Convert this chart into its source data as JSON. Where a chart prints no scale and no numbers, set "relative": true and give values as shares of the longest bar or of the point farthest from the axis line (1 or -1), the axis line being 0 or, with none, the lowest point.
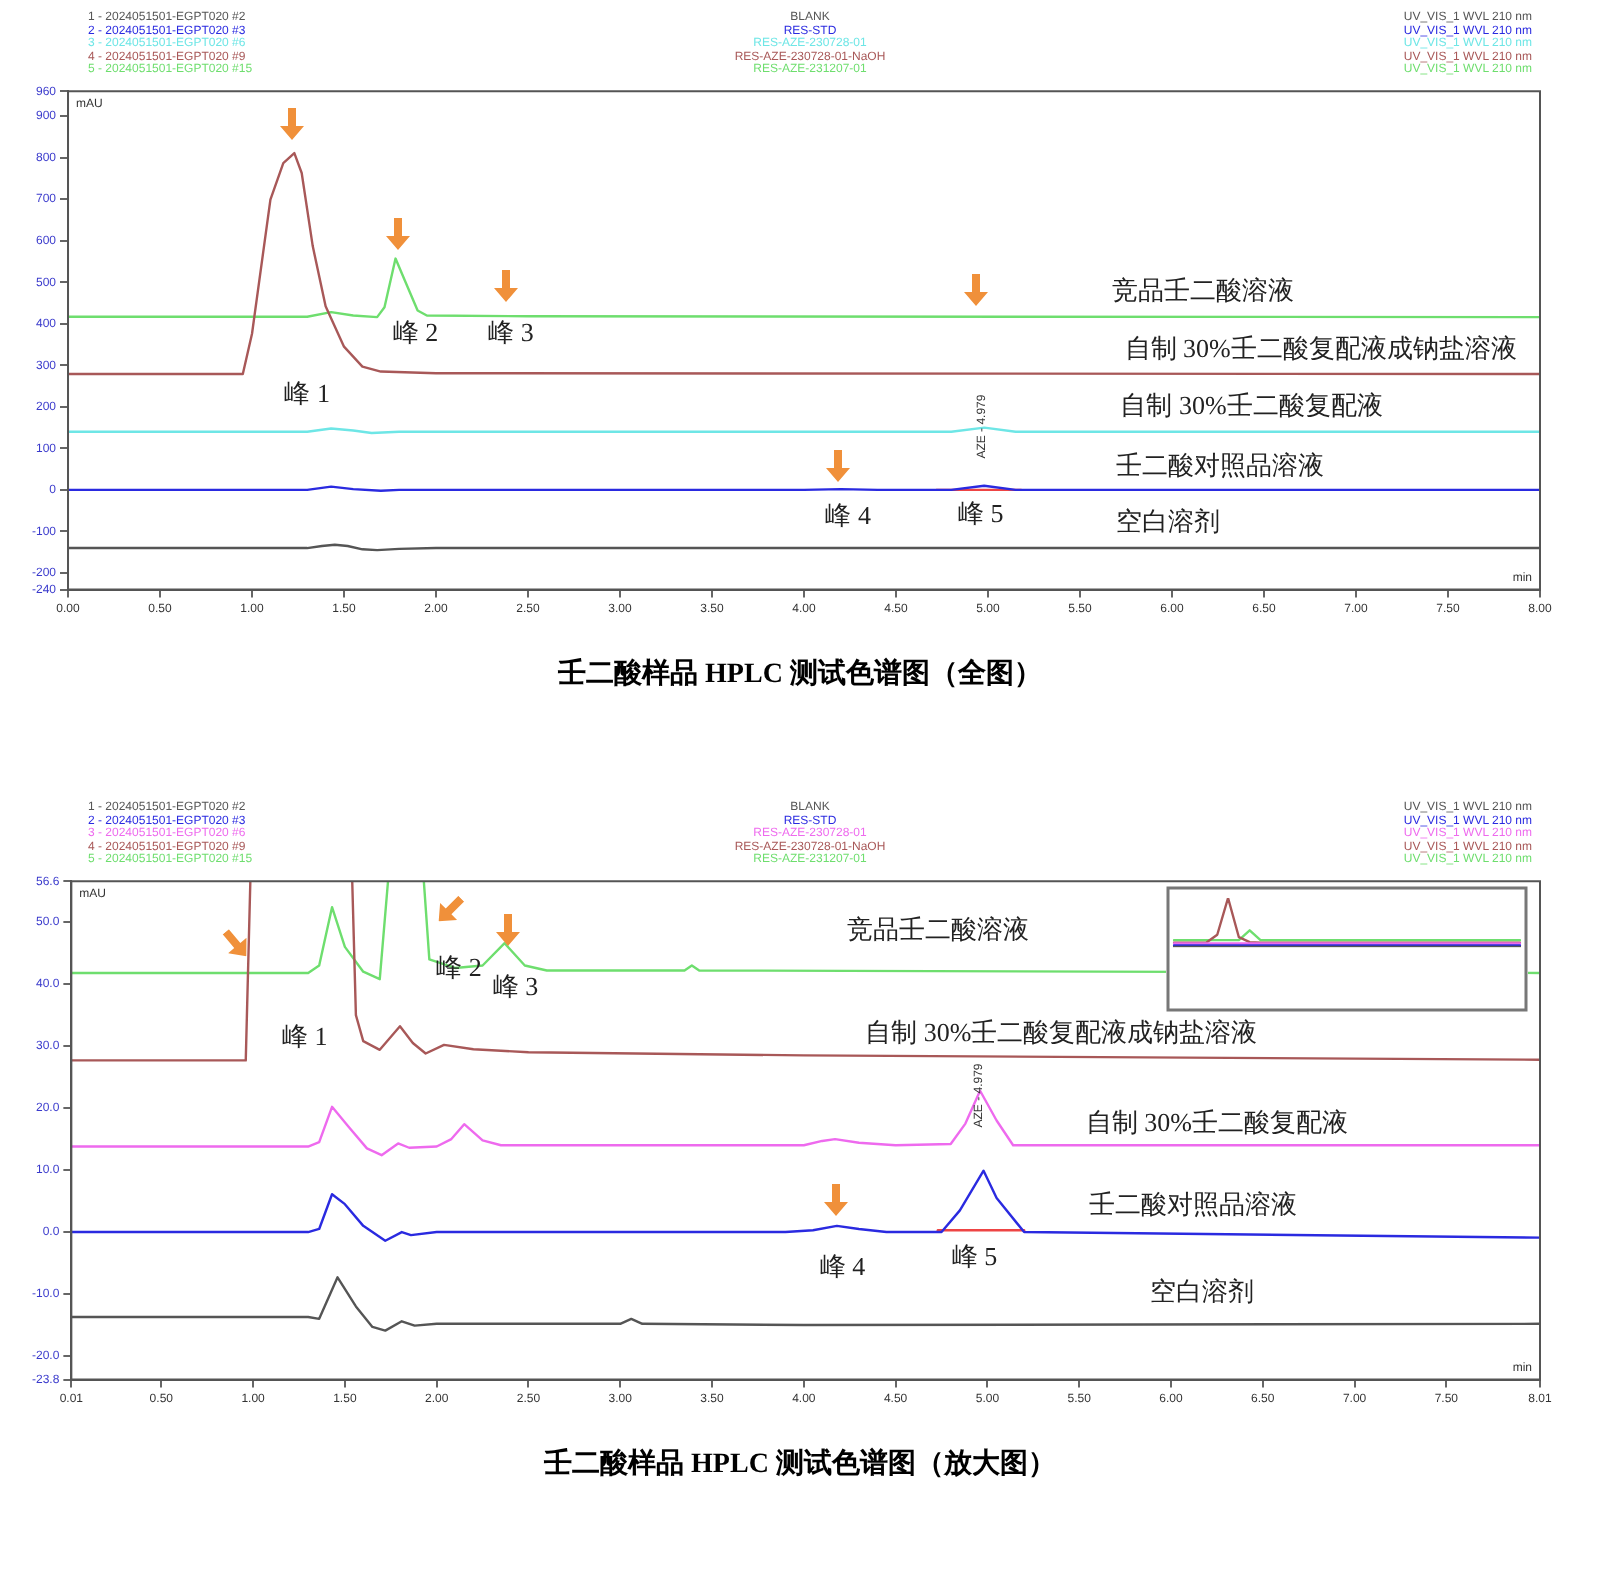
{
  "chart_data": [
    {
      "type": "line",
      "title": "壬二酸样品 HPLC 测试色谱图（全图）",
      "xlabel": "min",
      "ylabel": "mAU",
      "xlim": [
        0,
        8
      ],
      "ylim": [
        -240,
        960
      ],
      "xticks": [
        {
          "value": 0,
          "label": "0.00"
        },
        {
          "value": 0.5,
          "label": "0.50"
        },
        {
          "value": 1,
          "label": "1.00"
        },
        {
          "value": 1.5,
          "label": "1.50"
        },
        {
          "value": 2,
          "label": "2.00"
        },
        {
          "value": 2.5,
          "label": "2.50"
        },
        {
          "value": 3,
          "label": "3.00"
        },
        {
          "value": 3.5,
          "label": "3.50"
        },
        {
          "value": 4,
          "label": "4.00"
        },
        {
          "value": 4.5,
          "label": "4.50"
        },
        {
          "value": 5,
          "label": "5.00"
        },
        {
          "value": 5.5,
          "label": "5.50"
        },
        {
          "value": 6,
          "label": "6.00"
        },
        {
          "value": 6.5,
          "label": "6.50"
        },
        {
          "value": 7,
          "label": "7.00"
        },
        {
          "value": 7.5,
          "label": "7.50"
        },
        {
          "value": 8,
          "label": "8.00"
        }
      ],
      "yticks": [
        960,
        900,
        800,
        700,
        600,
        500,
        400,
        300,
        200,
        100,
        0,
        -100,
        -200,
        -240
      ],
      "grid": false,
      "legend": false,
      "marker": "none",
      "line_style": "solid",
      "series": [
        {
          "color": "#555555",
          "x": [
            0,
            1.3,
            1.38,
            1.45,
            1.52,
            1.6,
            1.68,
            1.8,
            2.0,
            8.0
          ],
          "values": [
            -140,
            -140,
            -135,
            -132,
            -135,
            -143,
            -145,
            -142,
            -140,
            -140
          ]
        },
        {
          "color": "#2a2ae0",
          "x": [
            0,
            1.3,
            1.43,
            1.55,
            1.7,
            1.8,
            4.0,
            4.2,
            4.4,
            4.8,
            4.979,
            5.15,
            8.0
          ],
          "values": [
            0,
            0,
            8,
            2,
            -2,
            0,
            0,
            2,
            0,
            0,
            10,
            0,
            0
          ]
        },
        {
          "color": "#6ee6e6",
          "x": [
            0,
            1.3,
            1.43,
            1.55,
            1.65,
            1.8,
            4.8,
            4.98,
            5.15,
            8.0
          ],
          "values": [
            140,
            140,
            148,
            143,
            137,
            140,
            140,
            150,
            140,
            140
          ]
        },
        {
          "color": "#a85858",
          "x": [
            0,
            0.95,
            1.0,
            1.1,
            1.17,
            1.2,
            1.23,
            1.27,
            1.33,
            1.4,
            1.5,
            1.6,
            1.7,
            2.0,
            8.0
          ],
          "values": [
            279,
            279,
            376,
            699,
            787,
            799,
            811,
            763,
            587,
            442,
            345,
            297,
            285,
            281,
            279
          ]
        },
        {
          "color": "#6ede6e",
          "x": [
            0,
            1.3,
            1.43,
            1.55,
            1.68,
            1.72,
            1.78,
            1.83,
            1.9,
            1.95,
            2.5,
            8.0
          ],
          "values": [
            417,
            417,
            428,
            420,
            416,
            440,
            557,
            505,
            432,
            420,
            418,
            416
          ]
        },
        {
          "color": "#ee4444",
          "x": [
            4.72,
            5.18
          ],
          "values": [
            0,
            0
          ]
        }
      ],
      "annotations": [
        "1 - 2024051501-EGPT020 #2",
        "BLANK",
        "UV_VIS_1 WVL 210 nm",
        "2 - 2024051501-EGPT020 #3",
        "RES-STD",
        "UV_VIS_1 WVL 210 nm",
        "3 - 2024051501-EGPT020 #6",
        "RES-AZE-230728-01",
        "UV_VIS_1 WVL 210 nm",
        "4 - 2024051501-EGPT020 #9",
        "RES-AZE-230728-01-NaOH",
        "UV_VIS_1 WVL 210 nm",
        "5 - 2024051501-EGPT020 #15",
        "RES-AZE-231207-01",
        "UV_VIS_1 WVL 210 nm",
        "峰 1",
        "峰 2",
        "峰 3",
        "峰 4",
        "峰 5",
        "竞品壬二酸溶液",
        "自制 30%壬二酸复配液成钠盐溶液",
        "自制 30%壬二酸复配液",
        "壬二酸对照品溶液",
        "空白溶剂",
        "AZE - 4.979"
      ]
    },
    {
      "type": "line",
      "title": "壬二酸样品 HPLC 测试色谱图（放大图）",
      "xlabel": "min",
      "ylabel": "mAU",
      "xlim": [
        0.01,
        8.01
      ],
      "ylim": [
        -23.8,
        56.6
      ],
      "xticks": [
        {
          "value": 0.01,
          "label": "0.01"
        },
        {
          "value": 0.5,
          "label": "0.50"
        },
        {
          "value": 1,
          "label": "1.00"
        },
        {
          "value": 1.5,
          "label": "1.50"
        },
        {
          "value": 2,
          "label": "2.00"
        },
        {
          "value": 2.5,
          "label": "2.50"
        },
        {
          "value": 3,
          "label": "3.00"
        },
        {
          "value": 3.5,
          "label": "3.50"
        },
        {
          "value": 4,
          "label": "4.00"
        },
        {
          "value": 4.5,
          "label": "4.50"
        },
        {
          "value": 5,
          "label": "5.00"
        },
        {
          "value": 5.5,
          "label": "5.50"
        },
        {
          "value": 6,
          "label": "6.00"
        },
        {
          "value": 6.5,
          "label": "6.50"
        },
        {
          "value": 7,
          "label": "7.00"
        },
        {
          "value": 7.5,
          "label": "7.50"
        },
        {
          "value": 8.01,
          "label": "8.01"
        }
      ],
      "yticks": [
        56.6,
        {
          "value": 50,
          "label": "50.0"
        },
        {
          "value": 40,
          "label": "40.0"
        },
        {
          "value": 30,
          "label": "30.0"
        },
        {
          "value": 20,
          "label": "20.0"
        },
        {
          "value": 10,
          "label": "10.0"
        },
        {
          "value": 0,
          "label": "0.0"
        },
        {
          "value": -10,
          "label": "-10.0"
        },
        {
          "value": -20,
          "label": "-20.0"
        },
        -23.8
      ],
      "grid": false,
      "legend": false,
      "marker": "none",
      "line_style": "solid",
      "series": [
        {
          "color": "#555555",
          "x": [
            0.01,
            1.3,
            1.36,
            1.46,
            1.56,
            1.65,
            1.72,
            1.81,
            1.88,
            2.0,
            3.0,
            3.06,
            3.12,
            4.0,
            8.01
          ],
          "values": [
            -13.7,
            -13.7,
            -14.0,
            -7.3,
            -12.0,
            -15.3,
            -15.9,
            -14.4,
            -15.1,
            -14.8,
            -14.8,
            -14.0,
            -14.8,
            -15.0,
            -14.8
          ]
        },
        {
          "color": "#2a2ae0",
          "x": [
            0.01,
            1.3,
            1.36,
            1.43,
            1.5,
            1.6,
            1.72,
            1.81,
            1.86,
            2.0,
            3.9,
            4.05,
            4.18,
            4.3,
            4.45,
            4.75,
            4.85,
            4.979,
            5.05,
            5.2,
            8.01
          ],
          "values": [
            0,
            0,
            0.5,
            6.1,
            4.5,
            1.0,
            -1.4,
            0,
            -0.5,
            0,
            0,
            0.3,
            1.0,
            0.5,
            0,
            0,
            3.5,
            9.9,
            5.5,
            0,
            -0.9
          ]
        },
        {
          "color": "#ee6aee",
          "x": [
            0.01,
            1.3,
            1.36,
            1.43,
            1.52,
            1.62,
            1.7,
            1.79,
            1.85,
            2.0,
            2.08,
            2.15,
            2.25,
            2.35,
            4.0,
            4.1,
            4.17,
            4.3,
            4.5,
            4.8,
            4.88,
            4.96,
            5.05,
            5.14,
            8.01
          ],
          "values": [
            13.8,
            13.8,
            14.5,
            20.2,
            17.0,
            13.5,
            12.4,
            14.3,
            13.6,
            13.8,
            15.0,
            17.4,
            14.8,
            14.0,
            14.0,
            14.7,
            15.0,
            14.4,
            14.0,
            14.2,
            17.5,
            22.8,
            18.0,
            14.0,
            14.0
          ]
        },
        {
          "color": "#a85858",
          "x": [
            0.01,
            0.96,
            0.985,
            1.2,
            1.54,
            1.56,
            1.6,
            1.69,
            1.8,
            1.87,
            1.94,
            2.04,
            2.2,
            2.5,
            4.0,
            8.01
          ],
          "values": [
            27.7,
            27.7,
            56.6,
            null,
            56.6,
            35.0,
            30.8,
            29.4,
            33.2,
            30.5,
            28.8,
            30.2,
            29.5,
            29.0,
            28.5,
            27.8
          ]
        },
        {
          "color": "#6ede6e",
          "x": [
            0.01,
            1.3,
            1.36,
            1.43,
            1.5,
            1.6,
            1.69,
            1.735,
            1.8,
            1.93,
            1.96,
            2.1,
            2.25,
            2.37,
            2.48,
            2.6,
            3.35,
            3.39,
            3.43,
            8.01
          ],
          "values": [
            41.8,
            41.8,
            43.0,
            52.4,
            46.0,
            42.0,
            40.8,
            56.6,
            null,
            56.6,
            44.0,
            42.6,
            43.0,
            46.6,
            43.0,
            42.2,
            42.2,
            43.0,
            42.2,
            41.8
          ]
        },
        {
          "color": "#ee4444",
          "x": [
            4.73,
            5.2
          ],
          "values": [
            0.3,
            0.3
          ]
        }
      ],
      "annotations": [
        "1 - 2024051501-EGPT020 #2",
        "BLANK",
        "UV_VIS_1 WVL 210 nm",
        "2 - 2024051501-EGPT020 #3",
        "RES-STD",
        "UV_VIS_1 WVL 210 nm",
        "3 - 2024051501-EGPT020 #6",
        "RES-AZE-230728-01",
        "UV_VIS_1 WVL 210 nm",
        "4 - 2024051501-EGPT020 #9",
        "RES-AZE-230728-01-NaOH",
        "UV_VIS_1 WVL 210 nm",
        "5 - 2024051501-EGPT020 #15",
        "RES-AZE-231207-01",
        "UV_VIS_1 WVL 210 nm",
        "峰 1",
        "峰 2",
        "峰 3",
        "峰 4",
        "峰 5",
        "竞品壬二酸溶液",
        "自制 30%壬二酸复配液成钠盐溶液",
        "自制 30%壬二酸复配液",
        "壬二酸对照品溶液",
        "空白溶剂",
        "AZE - 4.979"
      ]
    },
    {
      "type": "line",
      "relative": true,
      "legend": false,
      "grid": false,
      "marker": "none",
      "categories": [
        null,
        null,
        null,
        null,
        null,
        null,
        null,
        null,
        null,
        null,
        null,
        null,
        null,
        null,
        null,
        null,
        null,
        null,
        null,
        null,
        null,
        null,
        null,
        null,
        null,
        null,
        null,
        null,
        null,
        null,
        null,
        null,
        null
      ],
      "series": [
        {
          "color": "#555555",
          "values": [
            0,
            0,
            0,
            0,
            0,
            0,
            0,
            0,
            0,
            0,
            0,
            0,
            0,
            0,
            0,
            0,
            0,
            0,
            0,
            0,
            0,
            0,
            0,
            0,
            0,
            0,
            0,
            0,
            0,
            0,
            0,
            0,
            0
          ]
        },
        {
          "color": "#2a2ae0",
          "values": [
            0.03,
            0.03,
            0.03,
            0.03,
            0.03,
            0.03,
            0.03,
            0.03,
            0.03,
            0.03,
            0.03,
            0.03,
            0.03,
            0.03,
            0.03,
            0.03,
            0.03,
            0.03,
            0.03,
            0.03,
            0.03,
            0.03,
            0.03,
            0.03,
            0.03,
            0.03,
            0.03,
            0.03,
            0.03,
            0.03,
            0.03,
            0.03,
            0.03
          ]
        },
        {
          "color": "#ee6aee",
          "values": [
            0.07,
            0.07,
            0.07,
            0.07,
            0.07,
            0.07,
            0.07,
            0.07,
            0.07,
            0.07,
            0.07,
            0.07,
            0.07,
            0.07,
            0.07,
            0.07,
            0.07,
            0.07,
            0.07,
            0.07,
            0.07,
            0.07,
            0.07,
            0.07,
            0.07,
            0.07,
            0.07,
            0.07,
            0.07,
            0.07,
            0.07,
            0.07,
            0.07
          ]
        },
        {
          "color": "#a85858",
          "values": [
            0.09,
            0.09,
            0.09,
            0.09,
            0.25,
            1.0,
            0.2,
            0.1,
            0.09,
            0.09,
            0.09,
            0.09,
            0.09,
            0.09,
            0.09,
            0.09,
            0.09,
            0.09,
            0.09,
            0.09,
            0.09,
            0.09,
            0.09,
            0.09,
            0.09,
            0.09,
            0.09,
            0.09,
            0.09,
            0.09,
            0.09,
            0.09,
            0.09
          ]
        },
        {
          "color": "#6ede6e",
          "values": [
            0.14,
            0.14,
            0.14,
            0.14,
            0.14,
            0.14,
            0.14,
            0.34,
            0.14,
            0.14,
            0.14,
            0.14,
            0.14,
            0.14,
            0.14,
            0.14,
            0.14,
            0.14,
            0.14,
            0.14,
            0.14,
            0.14,
            0.14,
            0.14,
            0.14,
            0.14,
            0.14,
            0.14,
            0.14,
            0.14,
            0.14,
            0.14,
            0.14
          ]
        }
      ]
    }
  ]
}
